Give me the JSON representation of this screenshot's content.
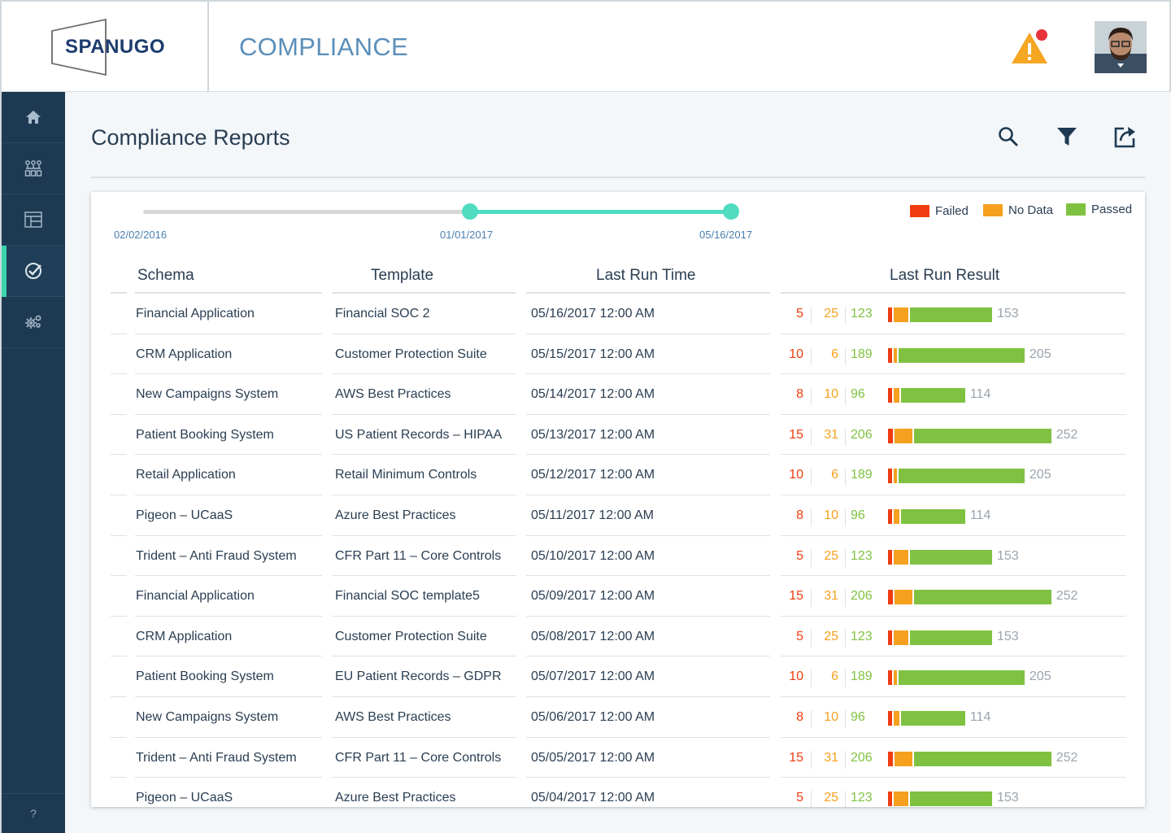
{
  "header": {
    "logo_text": "SPANUGO",
    "app_title": "COMPLIANCE"
  },
  "sidebar": {
    "items": [
      {
        "icon": "home-icon"
      },
      {
        "icon": "org-chart-icon"
      },
      {
        "icon": "layout-icon"
      },
      {
        "icon": "check-circle-icon",
        "active": true
      },
      {
        "icon": "settings-gears-icon"
      }
    ],
    "help_label": "?"
  },
  "main": {
    "title": "Compliance Reports",
    "tools": [
      "search-icon",
      "filter-icon",
      "export-icon"
    ]
  },
  "slider": {
    "start_label": "02/02/2016",
    "from_label": "01/01/2017",
    "to_label": "05/16/2017"
  },
  "legend": {
    "failed": "Failed",
    "no_data": "No Data",
    "passed": "Passed"
  },
  "colors": {
    "failed": "#f03c0f",
    "no_data": "#f5a01e",
    "passed": "#7fc241",
    "accent": "#4fdcc1"
  },
  "table": {
    "headers": {
      "schema": "Schema",
      "template": "Template",
      "time": "Last Run Time",
      "result": "Last Run Result"
    },
    "rows": [
      {
        "schema": "Financial Application",
        "template": "Financial SOC 2",
        "time": "05/16/2017 12:00 AM",
        "failed": "5",
        "nodata": "25",
        "passed": "123",
        "total": "153"
      },
      {
        "schema": "CRM Application",
        "template": "Customer Protection Suite",
        "time": "05/15/2017 12:00 AM",
        "failed": "10",
        "nodata": "6",
        "passed": "189",
        "total": "205"
      },
      {
        "schema": "New Campaigns System",
        "template": "AWS Best Practices",
        "time": "05/14/2017 12:00 AM",
        "failed": "8",
        "nodata": "10",
        "passed": "96",
        "total": "114"
      },
      {
        "schema": "Patient Booking System",
        "template": "US Patient Records – HIPAA",
        "time": "05/13/2017 12:00 AM",
        "failed": "15",
        "nodata": "31",
        "passed": "206",
        "total": "252"
      },
      {
        "schema": "Retail Application",
        "template": "Retail Minimum Controls",
        "time": "05/12/2017 12:00 AM",
        "failed": "10",
        "nodata": "6",
        "passed": "189",
        "total": "205"
      },
      {
        "schema": "Pigeon – UCaaS",
        "template": "Azure Best Practices",
        "time": "05/11/2017 12:00 AM",
        "failed": "8",
        "nodata": "10",
        "passed": "96",
        "total": "114"
      },
      {
        "schema": "Trident – Anti Fraud System",
        "template": "CFR Part 11 – Core Controls",
        "time": "05/10/2017 12:00 AM",
        "failed": "5",
        "nodata": "25",
        "passed": "123",
        "total": "153"
      },
      {
        "schema": "Financial Application",
        "template": "Financial SOC template5",
        "time": "05/09/2017 12:00 AM",
        "failed": "15",
        "nodata": "31",
        "passed": "206",
        "total": "252"
      },
      {
        "schema": "CRM Application",
        "template": "Customer Protection Suite",
        "time": "05/08/2017 12:00 AM",
        "failed": "5",
        "nodata": "25",
        "passed": "123",
        "total": "153"
      },
      {
        "schema": "Patient Booking System",
        "template": "EU Patient Records – GDPR",
        "time": "05/07/2017 12:00 AM",
        "failed": "10",
        "nodata": "6",
        "passed": "189",
        "total": "205"
      },
      {
        "schema": "New Campaigns System",
        "template": "AWS Best Practices",
        "time": "05/06/2017 12:00 AM",
        "failed": "8",
        "nodata": "10",
        "passed": "96",
        "total": "114"
      },
      {
        "schema": "Trident – Anti Fraud System",
        "template": "CFR Part 11 – Core Controls",
        "time": "05/05/2017 12:00 AM",
        "failed": "15",
        "nodata": "31",
        "passed": "206",
        "total": "252"
      },
      {
        "schema": "Pigeon – UCaaS",
        "template": "Azure Best Practices",
        "time": "05/04/2017 12:00 AM",
        "failed": "5",
        "nodata": "25",
        "passed": "123",
        "total": "153"
      }
    ]
  }
}
